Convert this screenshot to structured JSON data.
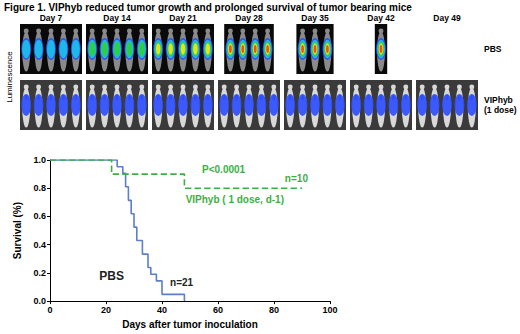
{
  "figure_title": "Figure 1. VIPhyb reduced tumor growth and prolonged survival of tumor bearing mice",
  "images": {
    "side_label": "Luminescence",
    "days": [
      "Day 7",
      "Day 14",
      "Day 21",
      "Day 28",
      "Day 35",
      "Day 42",
      "Day 49"
    ],
    "rows": [
      {
        "label": [
          "PBS"
        ],
        "mice": [
          5,
          5,
          5,
          4,
          3,
          1,
          0
        ]
      },
      {
        "label": [
          "VIPhyb",
          "(1 dose)"
        ],
        "mice": [
          5,
          5,
          5,
          5,
          5,
          5,
          5
        ]
      }
    ]
  },
  "chart_data": {
    "type": "line",
    "xlabel": "Days after tumor inoculation",
    "ylabel": "Survival (%)",
    "xlim": [
      0,
      100
    ],
    "xticks": [
      0,
      20,
      40,
      60,
      80,
      100
    ],
    "ylim": [
      0,
      1
    ],
    "yticks": [
      {
        "value": 0,
        "label": "0.0"
      },
      {
        "value": 0.2,
        "label": "0.2"
      },
      {
        "value": 0.4,
        "label": "0.4"
      },
      {
        "value": 0.6,
        "label": "0.6"
      },
      {
        "value": 0.8,
        "label": "0.8"
      },
      {
        "value": 1,
        "label": "1.0"
      }
    ],
    "grid": false,
    "series": [
      {
        "name": "PBS",
        "color": "#5b7fc9",
        "line_style": "solid",
        "x": [
          0,
          24,
          26,
          27,
          28,
          29,
          30,
          31,
          33,
          35,
          36,
          38,
          40,
          48
        ],
        "values": [
          1,
          0.952,
          0.905,
          0.81,
          0.714,
          0.619,
          0.524,
          0.429,
          0.333,
          0.238,
          0.19,
          0.143,
          0.048,
          0
        ]
      },
      {
        "name": "VIPhyb ( 1 dose, d-1)",
        "color": "#3cb043",
        "line_style": "dashed",
        "x": [
          0,
          22,
          48,
          90
        ],
        "values": [
          1,
          0.9,
          0.8,
          0.8
        ]
      }
    ],
    "annotations": [
      {
        "text": "P<0.0001",
        "x": 62,
        "y": 0.93,
        "color": "#3cb043"
      },
      {
        "text": "n=10",
        "x": 88,
        "y": 0.87,
        "color": "#3cb043"
      },
      {
        "text": "VIPhyb ( 1 dose, d-1)",
        "x": 66,
        "y": 0.72,
        "color": "#3cb043"
      },
      {
        "text": "PBS",
        "x": 22,
        "y": 0.18,
        "color": "#222222"
      },
      {
        "text": "n=21",
        "x": 47,
        "y": 0.13,
        "color": "#222222"
      }
    ]
  }
}
